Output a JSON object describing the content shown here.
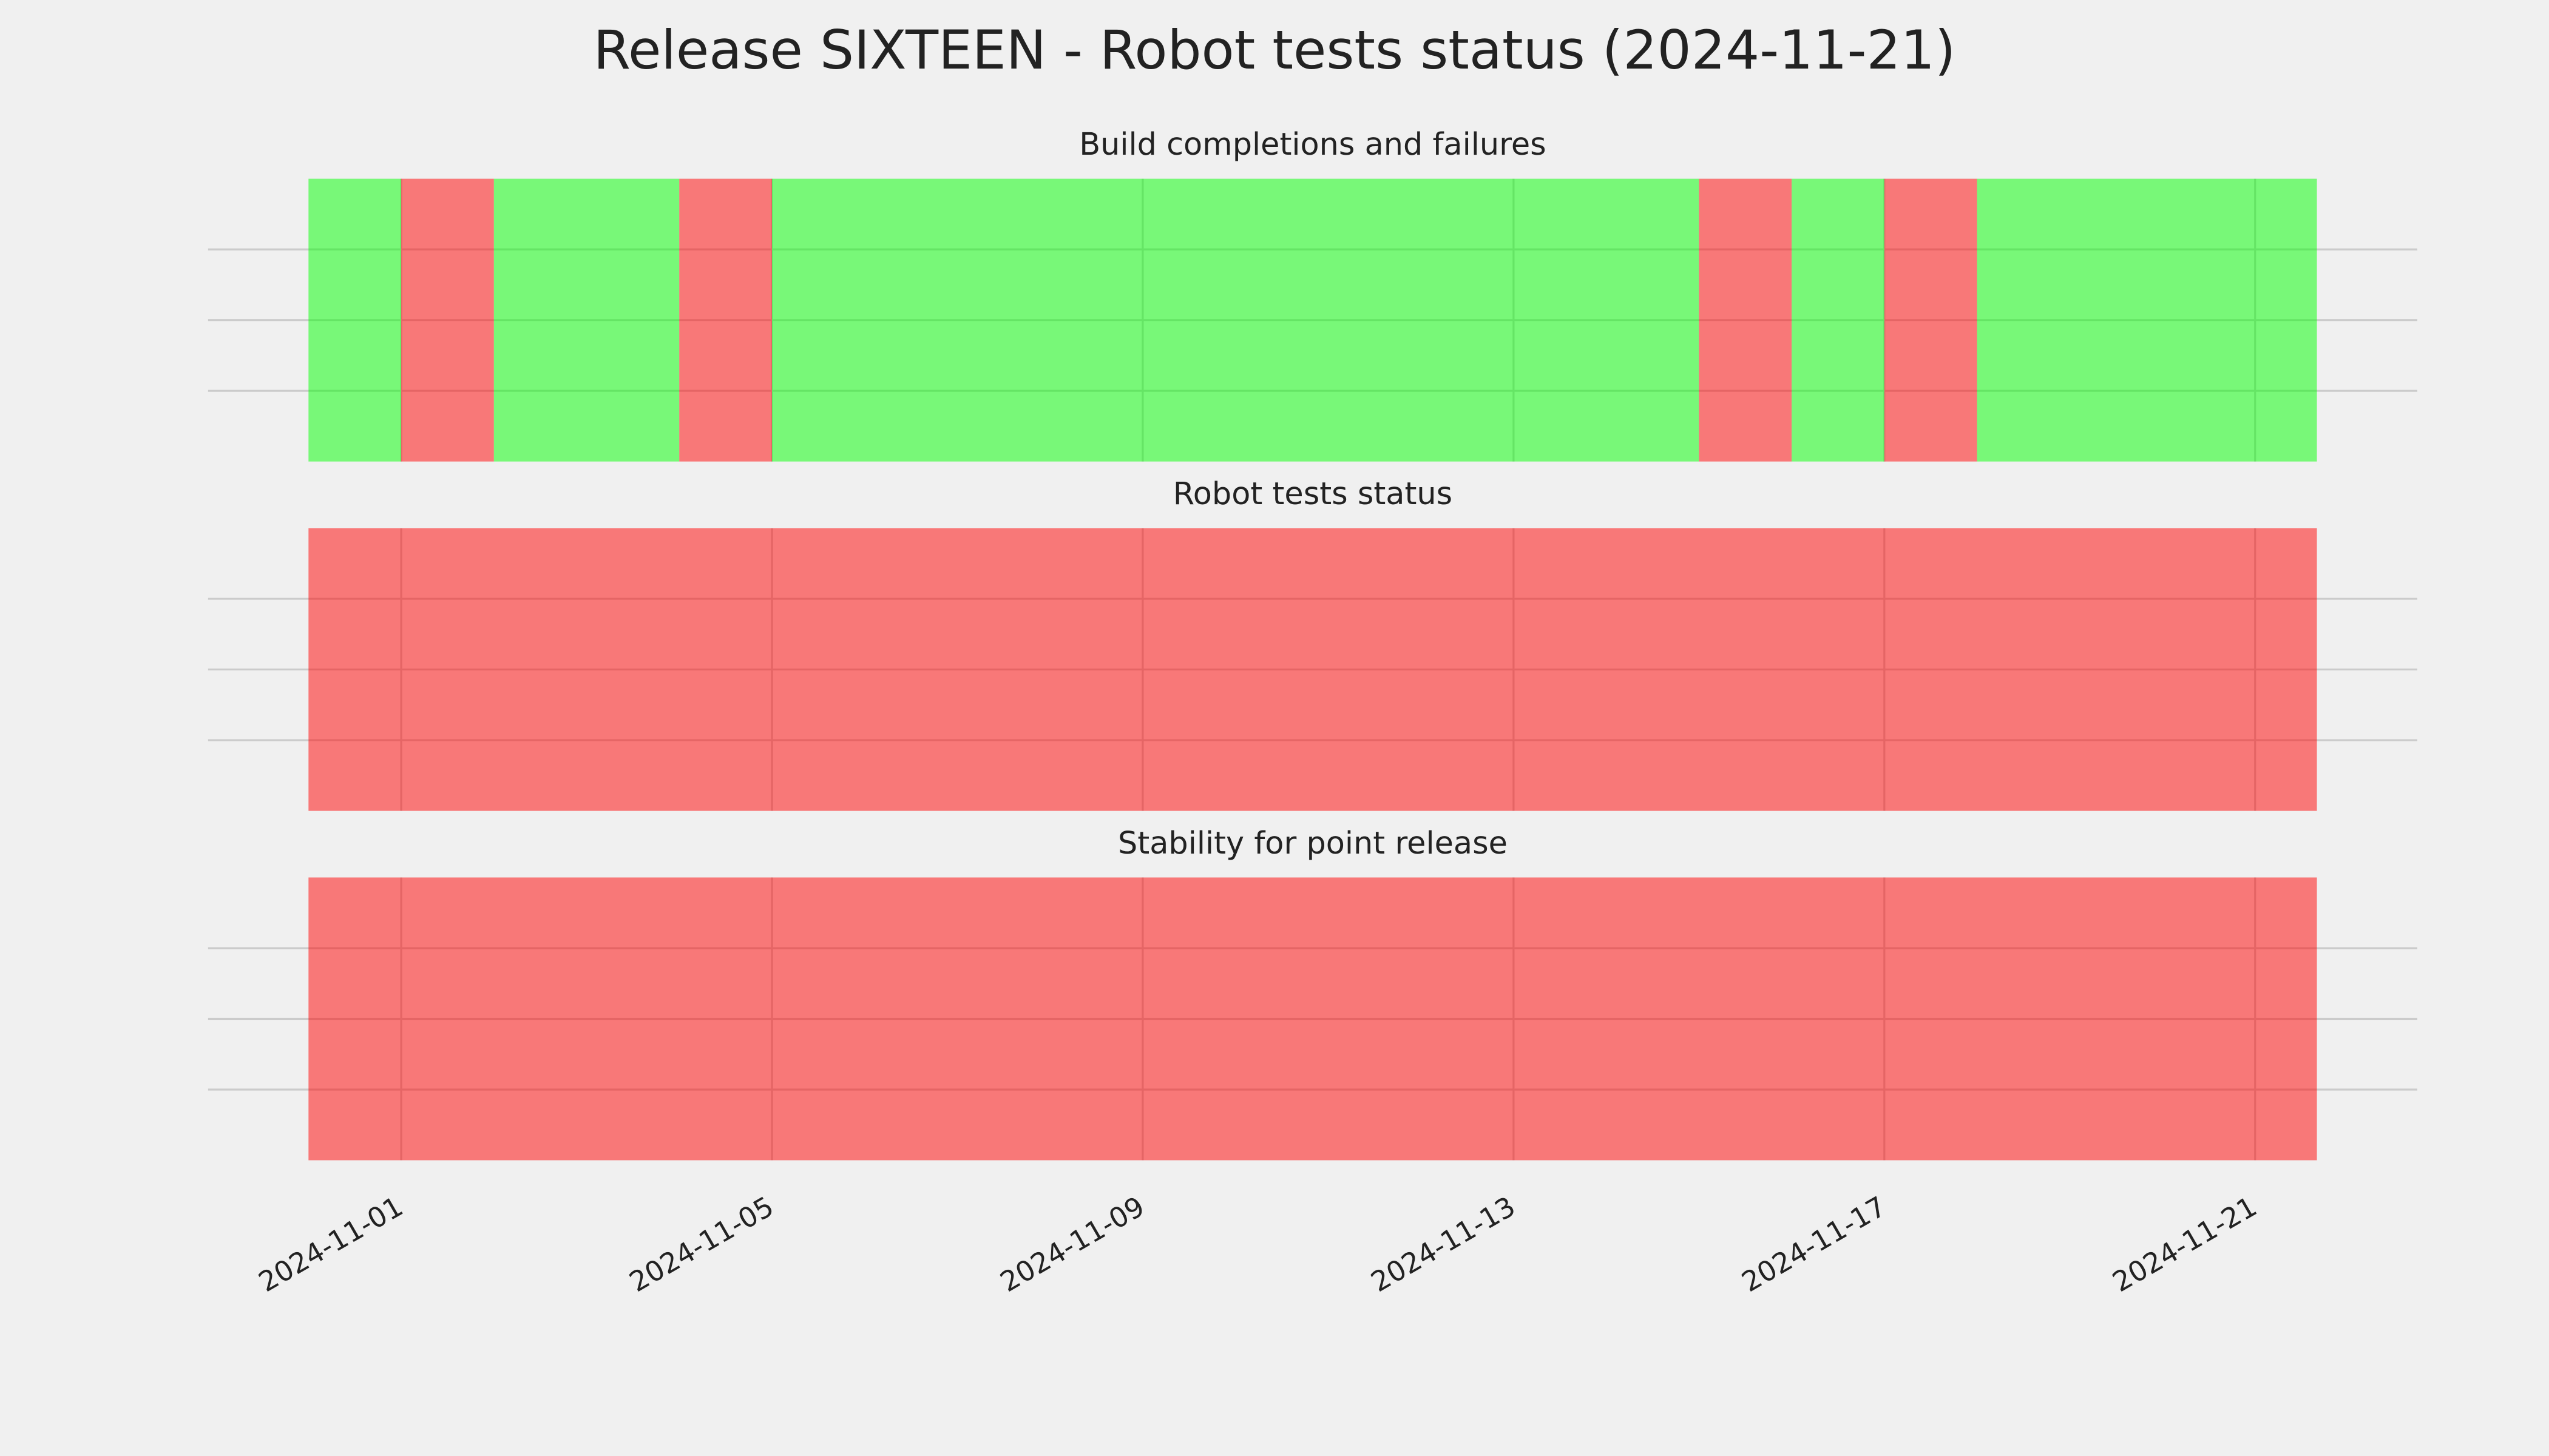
{
  "title": "Release SIXTEEN - Robot tests status (2024-11-21)",
  "chart_data": [
    {
      "type": "timeline",
      "title": "Build completions and failures",
      "starts": [
        "2024-10-31",
        "2024-11-01",
        "2024-11-02",
        "2024-11-04",
        "2024-11-05",
        "2024-11-15",
        "2024-11-16",
        "2024-11-17",
        "2024-11-18"
      ],
      "ends": [
        "2024-11-01",
        "2024-11-02",
        "2024-11-04",
        "2024-11-05",
        "2024-11-15",
        "2024-11-16",
        "2024-11-17",
        "2024-11-18",
        "2024-11-21T16:00"
      ],
      "colors": [
        "#00ff00",
        "#ff0000",
        "#00ff00",
        "#ff0000",
        "#00ff00",
        "#ff0000",
        "#00ff00",
        "#ff0000",
        "#00ff00"
      ],
      "alpha": 0.5,
      "xlim": [
        "2024-10-29T22:00",
        "2024-11-22T18:00"
      ],
      "xticks": [
        "2024-11-01",
        "2024-11-05",
        "2024-11-09",
        "2024-11-13",
        "2024-11-17",
        "2024-11-21"
      ],
      "show_xtick_labels": false,
      "ylim": [
        0,
        1
      ],
      "yticks": [
        0.25,
        0.5,
        0.75
      ],
      "grid": true
    },
    {
      "type": "timeline",
      "title": "Robot tests status",
      "starts": [
        "2024-10-31"
      ],
      "ends": [
        "2024-11-21T16:00"
      ],
      "colors": [
        "#ff0000"
      ],
      "alpha": 0.5,
      "xlim": [
        "2024-10-29T22:00",
        "2024-11-22T18:00"
      ],
      "xticks": [
        "2024-11-01",
        "2024-11-05",
        "2024-11-09",
        "2024-11-13",
        "2024-11-17",
        "2024-11-21"
      ],
      "show_xtick_labels": false,
      "ylim": [
        0,
        1
      ],
      "yticks": [
        0.25,
        0.5,
        0.75
      ],
      "grid": true
    },
    {
      "type": "timeline",
      "title": "Stability for point release",
      "starts": [
        "2024-10-31"
      ],
      "ends": [
        "2024-11-21T16:00"
      ],
      "colors": [
        "#ff0000"
      ],
      "alpha": 0.5,
      "xlim": [
        "2024-10-29T22:00",
        "2024-11-22T18:00"
      ],
      "xticks": [
        "2024-11-01",
        "2024-11-05",
        "2024-11-09",
        "2024-11-13",
        "2024-11-17",
        "2024-11-21"
      ],
      "show_xtick_labels": true,
      "ylim": [
        0,
        1
      ],
      "yticks": [
        0.25,
        0.5,
        0.75
      ],
      "grid": true
    }
  ]
}
